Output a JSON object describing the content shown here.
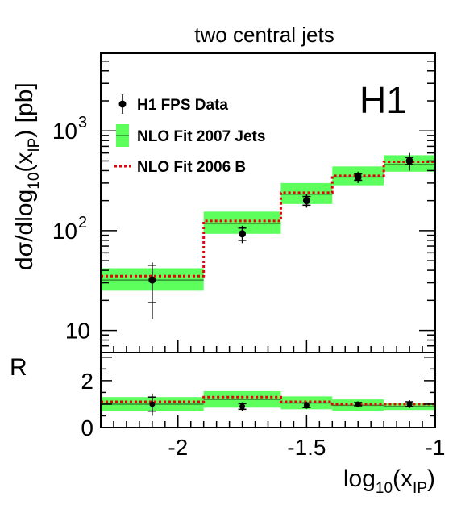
{
  "chart_data": {
    "type": "scatter",
    "title": "two central jets",
    "experiment_label": "H1",
    "xlabel": {
      "main": "log",
      "sub1": "10",
      "mid": "(x",
      "sub2": "IP",
      "end": ")"
    },
    "ylabel": {
      "pre": "dσ/dlog",
      "sub1": "10",
      "mid": "(x",
      "sub2": "IP",
      "end": ") [pb]"
    },
    "ratio_label": "R",
    "xlim": [
      -2.3,
      -1.0
    ],
    "ylim_log": [
      6,
      6000
    ],
    "ratio_ylim": [
      0,
      3.2
    ],
    "x_ticks": [
      {
        "value": -2.0,
        "label": "-2"
      },
      {
        "value": -1.5,
        "label": "-1.5"
      },
      {
        "value": -1.0,
        "label": "-1"
      }
    ],
    "y_ticks": [
      {
        "value": 10,
        "label": "10"
      },
      {
        "value": 100,
        "label": "10",
        "exp": "2"
      },
      {
        "value": 1000,
        "label": "10",
        "exp": "3"
      }
    ],
    "ratio_ticks": [
      {
        "value": 0,
        "label": "0"
      },
      {
        "value": 2,
        "label": "2"
      }
    ],
    "legend": [
      {
        "name": "H1 FPS Data",
        "style": "marker"
      },
      {
        "name": "NLO Fit 2007 Jets",
        "style": "band"
      },
      {
        "name": "NLO Fit 2006 B",
        "style": "dotted"
      }
    ],
    "bins": [
      -2.3,
      -1.9,
      -1.6,
      -1.4,
      -1.2,
      -1.0
    ],
    "data": [
      {
        "x": -2.1,
        "y": 32,
        "stat_lo": 19,
        "stat_hi": 45,
        "tot_lo": 13,
        "tot_hi": 48
      },
      {
        "x": -1.75,
        "y": 93,
        "stat_lo": 80,
        "stat_hi": 106,
        "tot_lo": 75,
        "tot_hi": 112
      },
      {
        "x": -1.5,
        "y": 200,
        "stat_lo": 180,
        "stat_hi": 220,
        "tot_lo": 170,
        "tot_hi": 232
      },
      {
        "x": -1.3,
        "y": 345,
        "stat_lo": 320,
        "stat_hi": 370,
        "tot_lo": 300,
        "tot_hi": 390
      },
      {
        "x": -1.1,
        "y": 500,
        "stat_lo": 460,
        "stat_hi": 540,
        "tot_lo": 400,
        "tot_hi": 600
      }
    ],
    "nlo_2007_jets": [
      {
        "central": 32,
        "lo": 25,
        "hi": 42
      },
      {
        "central": 118,
        "lo": 93,
        "hi": 155
      },
      {
        "central": 232,
        "lo": 185,
        "hi": 300
      },
      {
        "central": 345,
        "lo": 285,
        "hi": 440
      },
      {
        "central": 460,
        "lo": 390,
        "hi": 570
      }
    ],
    "nlo_2006_b": [
      35,
      125,
      240,
      355,
      490
    ],
    "ratio_data": [
      {
        "y": 1.0,
        "stat_lo": 0.7,
        "stat_hi": 1.3,
        "tot_lo": 0.5,
        "tot_hi": 1.45
      },
      {
        "y": 0.9,
        "stat_lo": 0.78,
        "stat_hi": 1.02,
        "tot_lo": 0.72,
        "tot_hi": 1.08
      },
      {
        "y": 0.95,
        "stat_lo": 0.85,
        "stat_hi": 1.05,
        "tot_lo": 0.8,
        "tot_hi": 1.1
      },
      {
        "y": 1.0,
        "stat_lo": 0.93,
        "stat_hi": 1.07,
        "tot_lo": 0.9,
        "tot_hi": 1.1
      },
      {
        "y": 1.0,
        "stat_lo": 0.9,
        "stat_hi": 1.1,
        "tot_lo": 0.83,
        "tot_hi": 1.17
      }
    ],
    "ratio_band": [
      {
        "central": 1.0,
        "lo": 0.7,
        "hi": 1.3
      },
      {
        "central": 1.2,
        "lo": 0.85,
        "hi": 1.55
      },
      {
        "central": 1.05,
        "lo": 0.78,
        "hi": 1.33
      },
      {
        "central": 0.95,
        "lo": 0.72,
        "hi": 1.2
      },
      {
        "central": 0.9,
        "lo": 0.75,
        "hi": 1.05
      }
    ],
    "ratio_2006_b": [
      1.1,
      1.3,
      1.1,
      1.0,
      1.0
    ],
    "colors": {
      "band": "#5cff5c",
      "band_line": "#2f8f2f",
      "dotted": "#e8000b",
      "marker": "#000000"
    }
  }
}
